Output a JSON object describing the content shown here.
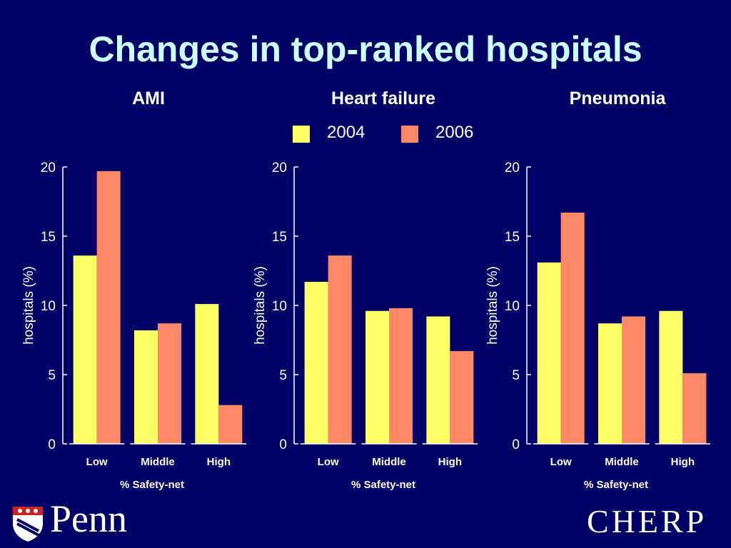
{
  "title": "Changes in top-ranked hospitals",
  "legend": [
    {
      "label": "2004",
      "color": "#FFFF66"
    },
    {
      "label": "2006",
      "color": "#FF8866"
    }
  ],
  "chart_data": [
    {
      "type": "bar",
      "title": "AMI",
      "categories": [
        "Low",
        "Middle",
        "High"
      ],
      "series": [
        {
          "name": "2004",
          "values": [
            13.6,
            8.2,
            10.1
          ]
        },
        {
          "name": "2006",
          "values": [
            19.7,
            8.7,
            2.8
          ]
        }
      ],
      "xlabel": "% Safety-net",
      "ylabel": "hospitals (%)",
      "ylim": [
        0,
        20
      ],
      "yticks": [
        "0",
        "5",
        "10",
        "15",
        "20"
      ]
    },
    {
      "type": "bar",
      "title": "Heart failure",
      "categories": [
        "Low",
        "Middle",
        "High"
      ],
      "series": [
        {
          "name": "2004",
          "values": [
            11.7,
            9.6,
            9.2
          ]
        },
        {
          "name": "2006",
          "values": [
            13.6,
            9.8,
            6.7
          ]
        }
      ],
      "xlabel": "% Safety-net",
      "ylabel": "hospitals (%)",
      "ylim": [
        0,
        20
      ],
      "yticks": [
        "0",
        "5",
        "10",
        "15",
        "20"
      ]
    },
    {
      "type": "bar",
      "title": "Pneumonia",
      "categories": [
        "Low",
        "Middle",
        "High"
      ],
      "series": [
        {
          "name": "2004",
          "values": [
            13.1,
            8.7,
            9.6
          ]
        },
        {
          "name": "2006",
          "values": [
            16.7,
            9.2,
            5.1
          ]
        }
      ],
      "xlabel": "% Safety-net",
      "ylabel": "hospitals (%)",
      "ylim": [
        0,
        20
      ],
      "yticks": [
        "0",
        "5",
        "10",
        "15",
        "20"
      ]
    }
  ],
  "footer": {
    "left_logo": "Penn",
    "left_logo_icon": "penn-shield-icon",
    "right_logo": "CHERP"
  }
}
